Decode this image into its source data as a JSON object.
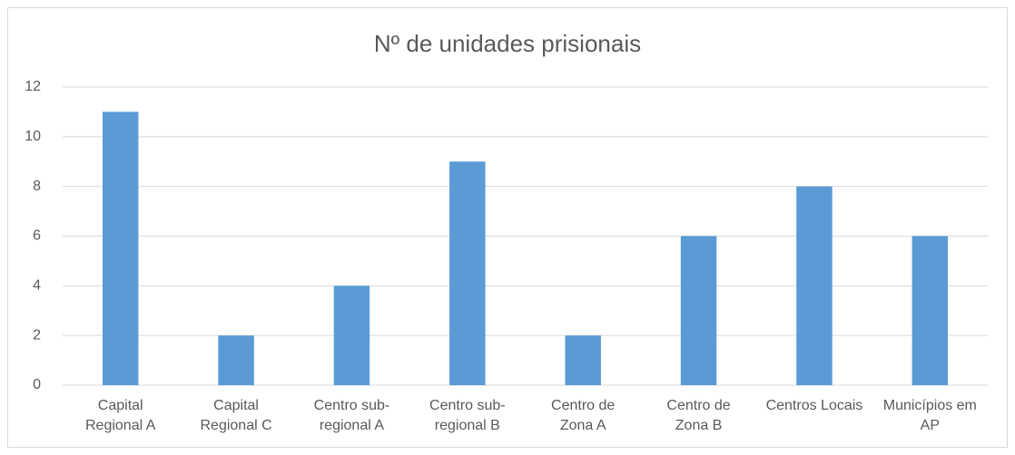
{
  "chart_data": {
    "type": "bar",
    "title": "Nº de unidades prisionais",
    "categories": [
      "Capital Regional A",
      "Capital Regional C",
      "Centro sub-regional A",
      "Centro sub-regional B",
      "Centro de Zona A",
      "Centro de Zona B",
      "Centros Locais",
      "Municípios em AP"
    ],
    "values": [
      11,
      2,
      4,
      9,
      2,
      6,
      8,
      6
    ],
    "color": "#5b9bd5",
    "ylim": [
      0,
      12
    ],
    "yticks": [
      0,
      2,
      4,
      6,
      8,
      10,
      12
    ],
    "grid": true
  }
}
